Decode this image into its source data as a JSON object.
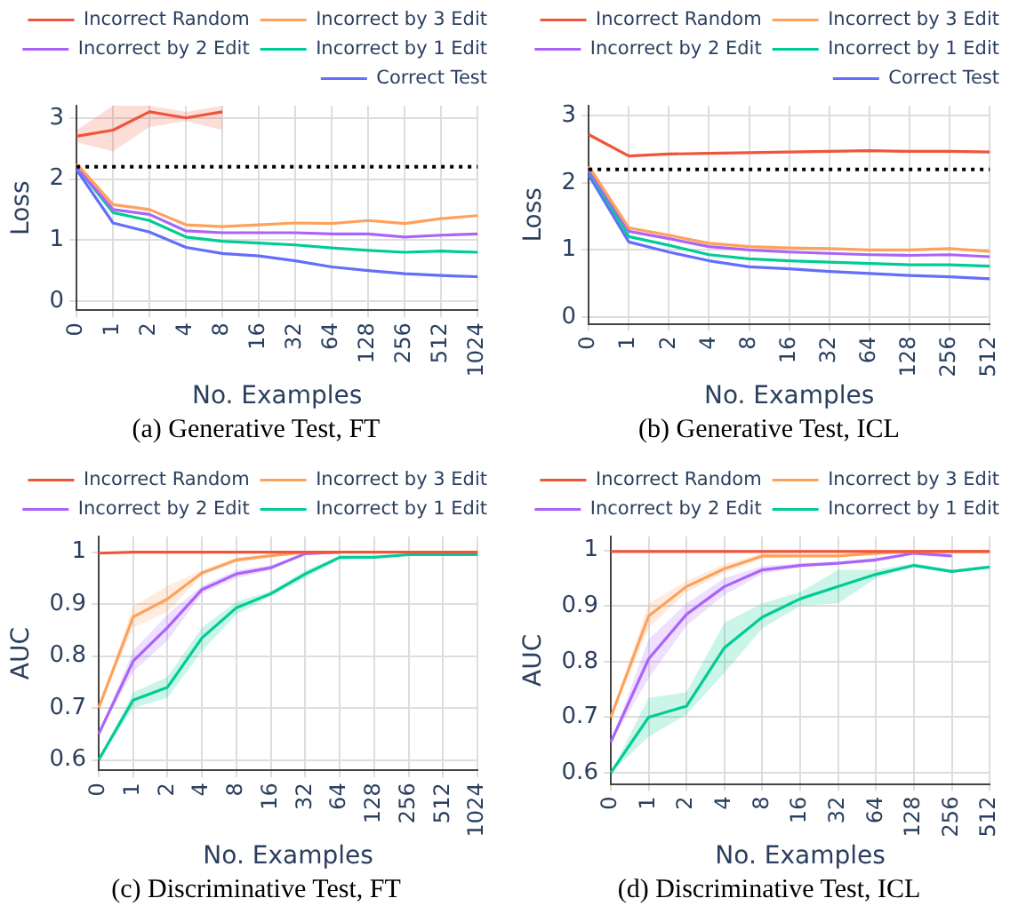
{
  "chart_data": [
    {
      "type": "line",
      "ylabel": "Loss",
      "xlabel": "No. Examples",
      "categories": [
        "0",
        "1",
        "2",
        "4",
        "8",
        "16",
        "32",
        "64",
        "128",
        "256",
        "512",
        "1024"
      ],
      "ylim": [
        -0.15,
        3.2
      ],
      "yticks": [
        0,
        1,
        2,
        3
      ],
      "grid": true,
      "legend": "top",
      "marker": "none",
      "ref_lines": [
        {
          "axis": "y",
          "value": 2.2,
          "color": "#000000",
          "line_style": "dotted"
        }
      ],
      "annotations": [
        "(a) Generative Test, FT"
      ],
      "series": [
        {
          "name": "Incorrect Random",
          "color": "#ef553b",
          "values": [
            2.7,
            2.8,
            3.1,
            3.0,
            3.1,
            null,
            null,
            null,
            null,
            null,
            null,
            null
          ],
          "lower": [
            2.6,
            2.45,
            2.85,
            2.95,
            2.8,
            null,
            null,
            null,
            null,
            null,
            null,
            null
          ],
          "upper": [
            2.8,
            3.2,
            3.2,
            3.1,
            3.2,
            null,
            null,
            null,
            null,
            null,
            null,
            null
          ]
        },
        {
          "name": "Incorrect by 3 Edit",
          "color": "#ffa15a",
          "values": [
            2.25,
            1.58,
            1.5,
            1.25,
            1.22,
            1.25,
            1.28,
            1.27,
            1.32,
            1.27,
            1.35,
            1.4
          ]
        },
        {
          "name": "Incorrect by 2 Edit",
          "color": "#ab63fa",
          "values": [
            2.2,
            1.5,
            1.42,
            1.15,
            1.12,
            1.12,
            1.12,
            1.1,
            1.1,
            1.05,
            1.08,
            1.1
          ]
        },
        {
          "name": "Incorrect by 1 Edit",
          "color": "#00cc96",
          "values": [
            2.2,
            1.45,
            1.32,
            1.05,
            0.98,
            0.95,
            0.92,
            0.87,
            0.83,
            0.8,
            0.82,
            0.8
          ]
        },
        {
          "name": "Correct Test",
          "color": "#636efa",
          "values": [
            2.15,
            1.28,
            1.13,
            0.88,
            0.78,
            0.74,
            0.66,
            0.56,
            0.5,
            0.45,
            0.42,
            0.4
          ]
        }
      ]
    },
    {
      "type": "line",
      "ylabel": "Loss",
      "xlabel": "No. Examples",
      "categories": [
        "0",
        "1",
        "2",
        "4",
        "8",
        "16",
        "32",
        "64",
        "128",
        "256",
        "512"
      ],
      "ylim": [
        -0.1,
        3.15
      ],
      "yticks": [
        0,
        1,
        2,
        3
      ],
      "grid": true,
      "legend": "top",
      "marker": "none",
      "ref_lines": [
        {
          "axis": "y",
          "value": 2.2,
          "color": "#000000",
          "line_style": "dotted"
        }
      ],
      "annotations": [
        "(b) Generative Test, ICL"
      ],
      "series": [
        {
          "name": "Incorrect Random",
          "color": "#ef553b",
          "values": [
            2.72,
            2.4,
            2.43,
            2.44,
            2.45,
            2.46,
            2.47,
            2.48,
            2.47,
            2.47,
            2.46
          ]
        },
        {
          "name": "Incorrect by 3 Edit",
          "color": "#ffa15a",
          "values": [
            2.25,
            1.33,
            1.22,
            1.1,
            1.05,
            1.03,
            1.02,
            1.0,
            1.0,
            1.02,
            0.98
          ]
        },
        {
          "name": "Incorrect by 2 Edit",
          "color": "#ab63fa",
          "values": [
            2.2,
            1.28,
            1.17,
            1.05,
            1.0,
            0.97,
            0.95,
            0.93,
            0.92,
            0.93,
            0.9
          ]
        },
        {
          "name": "Incorrect by 1 Edit",
          "color": "#00cc96",
          "values": [
            2.18,
            1.2,
            1.07,
            0.93,
            0.87,
            0.84,
            0.82,
            0.8,
            0.78,
            0.78,
            0.76
          ]
        },
        {
          "name": "Correct Test",
          "color": "#636efa",
          "values": [
            2.12,
            1.12,
            0.97,
            0.84,
            0.75,
            0.72,
            0.68,
            0.65,
            0.62,
            0.6,
            0.57
          ]
        }
      ]
    },
    {
      "type": "line",
      "ylabel": "AUC",
      "xlabel": "No. Examples",
      "categories": [
        "0",
        "1",
        "2",
        "4",
        "8",
        "16",
        "32",
        "64",
        "128",
        "256",
        "512",
        "1024"
      ],
      "ylim": [
        0.58,
        1.03
      ],
      "yticks": [
        0.6,
        0.7,
        0.8,
        0.9,
        1
      ],
      "grid": true,
      "legend": "top",
      "marker": "none",
      "annotations": [
        "(c) Discriminative Test, FT"
      ],
      "series": [
        {
          "name": "Incorrect Random",
          "color": "#ef553b",
          "values": [
            0.998,
            1,
            1,
            1,
            1,
            1,
            1,
            1,
            1,
            1,
            1,
            1
          ]
        },
        {
          "name": "Incorrect by 3 Edit",
          "color": "#ffa15a",
          "values": [
            0.7,
            0.875,
            0.91,
            0.96,
            0.985,
            0.993,
            1,
            1,
            null,
            null,
            null,
            null
          ],
          "lower": [
            0.7,
            0.855,
            0.885,
            0.955,
            0.98,
            0.99,
            1,
            1,
            null,
            null,
            null,
            null
          ],
          "upper": [
            0.7,
            0.895,
            0.935,
            0.965,
            0.99,
            0.996,
            1,
            1,
            null,
            null,
            null,
            null
          ]
        },
        {
          "name": "Incorrect by 2 Edit",
          "color": "#ab63fa",
          "values": [
            0.65,
            0.79,
            0.855,
            0.928,
            0.958,
            0.97,
            0.997,
            1,
            null,
            null,
            null,
            null
          ],
          "lower": [
            0.65,
            0.77,
            0.83,
            0.92,
            0.95,
            0.965,
            0.995,
            1,
            null,
            null,
            null,
            null
          ],
          "upper": [
            0.65,
            0.81,
            0.88,
            0.935,
            0.965,
            0.975,
            0.999,
            1,
            null,
            null,
            null,
            null
          ]
        },
        {
          "name": "Incorrect by 1 Edit",
          "color": "#00cc96",
          "values": [
            0.6,
            0.715,
            0.74,
            0.835,
            0.893,
            0.92,
            0.958,
            0.99,
            0.99,
            0.995,
            0.995,
            0.995
          ],
          "lower": [
            0.6,
            0.7,
            0.72,
            0.81,
            0.88,
            0.915,
            0.95,
            0.985,
            0.99,
            0.995,
            0.995,
            0.995
          ],
          "upper": [
            0.6,
            0.73,
            0.76,
            0.855,
            0.905,
            0.925,
            0.965,
            0.993,
            0.993,
            0.997,
            0.997,
            0.997
          ]
        }
      ]
    },
    {
      "type": "line",
      "ylabel": "AUC",
      "xlabel": "No. Examples",
      "categories": [
        "0",
        "1",
        "2",
        "4",
        "8",
        "16",
        "32",
        "64",
        "128",
        "256",
        "512"
      ],
      "ylim": [
        0.58,
        1.025
      ],
      "yticks": [
        0.6,
        0.7,
        0.8,
        0.9,
        1
      ],
      "grid": true,
      "legend": "top",
      "marker": "none",
      "annotations": [
        "(d) Discriminative Test, ICL"
      ],
      "series": [
        {
          "name": "Incorrect Random",
          "color": "#ef553b",
          "values": [
            0.998,
            0.998,
            0.998,
            0.998,
            0.998,
            0.998,
            0.998,
            0.998,
            0.998,
            0.998,
            0.998
          ]
        },
        {
          "name": "Incorrect by 3 Edit",
          "color": "#ffa15a",
          "values": [
            0.7,
            0.882,
            0.935,
            0.967,
            0.99,
            0.99,
            0.99,
            0.995,
            0.998,
            0.998,
            0.998
          ],
          "lower": [
            0.7,
            0.86,
            0.925,
            0.96,
            0.985,
            0.988,
            0.99,
            0.995,
            0.998,
            0.998,
            0.998
          ],
          "upper": [
            0.7,
            0.905,
            0.945,
            0.975,
            0.995,
            0.993,
            0.993,
            0.997,
            0.999,
            0.999,
            0.999
          ]
        },
        {
          "name": "Incorrect by 2 Edit",
          "color": "#ab63fa",
          "values": [
            0.655,
            0.805,
            0.885,
            0.935,
            0.965,
            0.973,
            0.977,
            0.983,
            0.995,
            0.99,
            null
          ],
          "lower": [
            0.655,
            0.77,
            0.865,
            0.92,
            0.958,
            0.97,
            0.975,
            0.98,
            0.993,
            0.988,
            null
          ],
          "upper": [
            0.655,
            0.84,
            0.905,
            0.95,
            0.972,
            0.977,
            0.98,
            0.987,
            0.997,
            0.993,
            null
          ]
        },
        {
          "name": "Incorrect by 1 Edit",
          "color": "#00cc96",
          "values": [
            0.6,
            0.7,
            0.72,
            0.825,
            0.88,
            0.913,
            0.935,
            0.957,
            0.973,
            0.962,
            0.97
          ],
          "lower": [
            0.6,
            0.665,
            0.705,
            0.78,
            0.86,
            0.9,
            0.905,
            0.95,
            0.97,
            0.96,
            0.968
          ],
          "upper": [
            0.6,
            0.735,
            0.745,
            0.87,
            0.905,
            0.925,
            0.965,
            0.965,
            0.977,
            0.965,
            0.973
          ]
        }
      ]
    }
  ]
}
